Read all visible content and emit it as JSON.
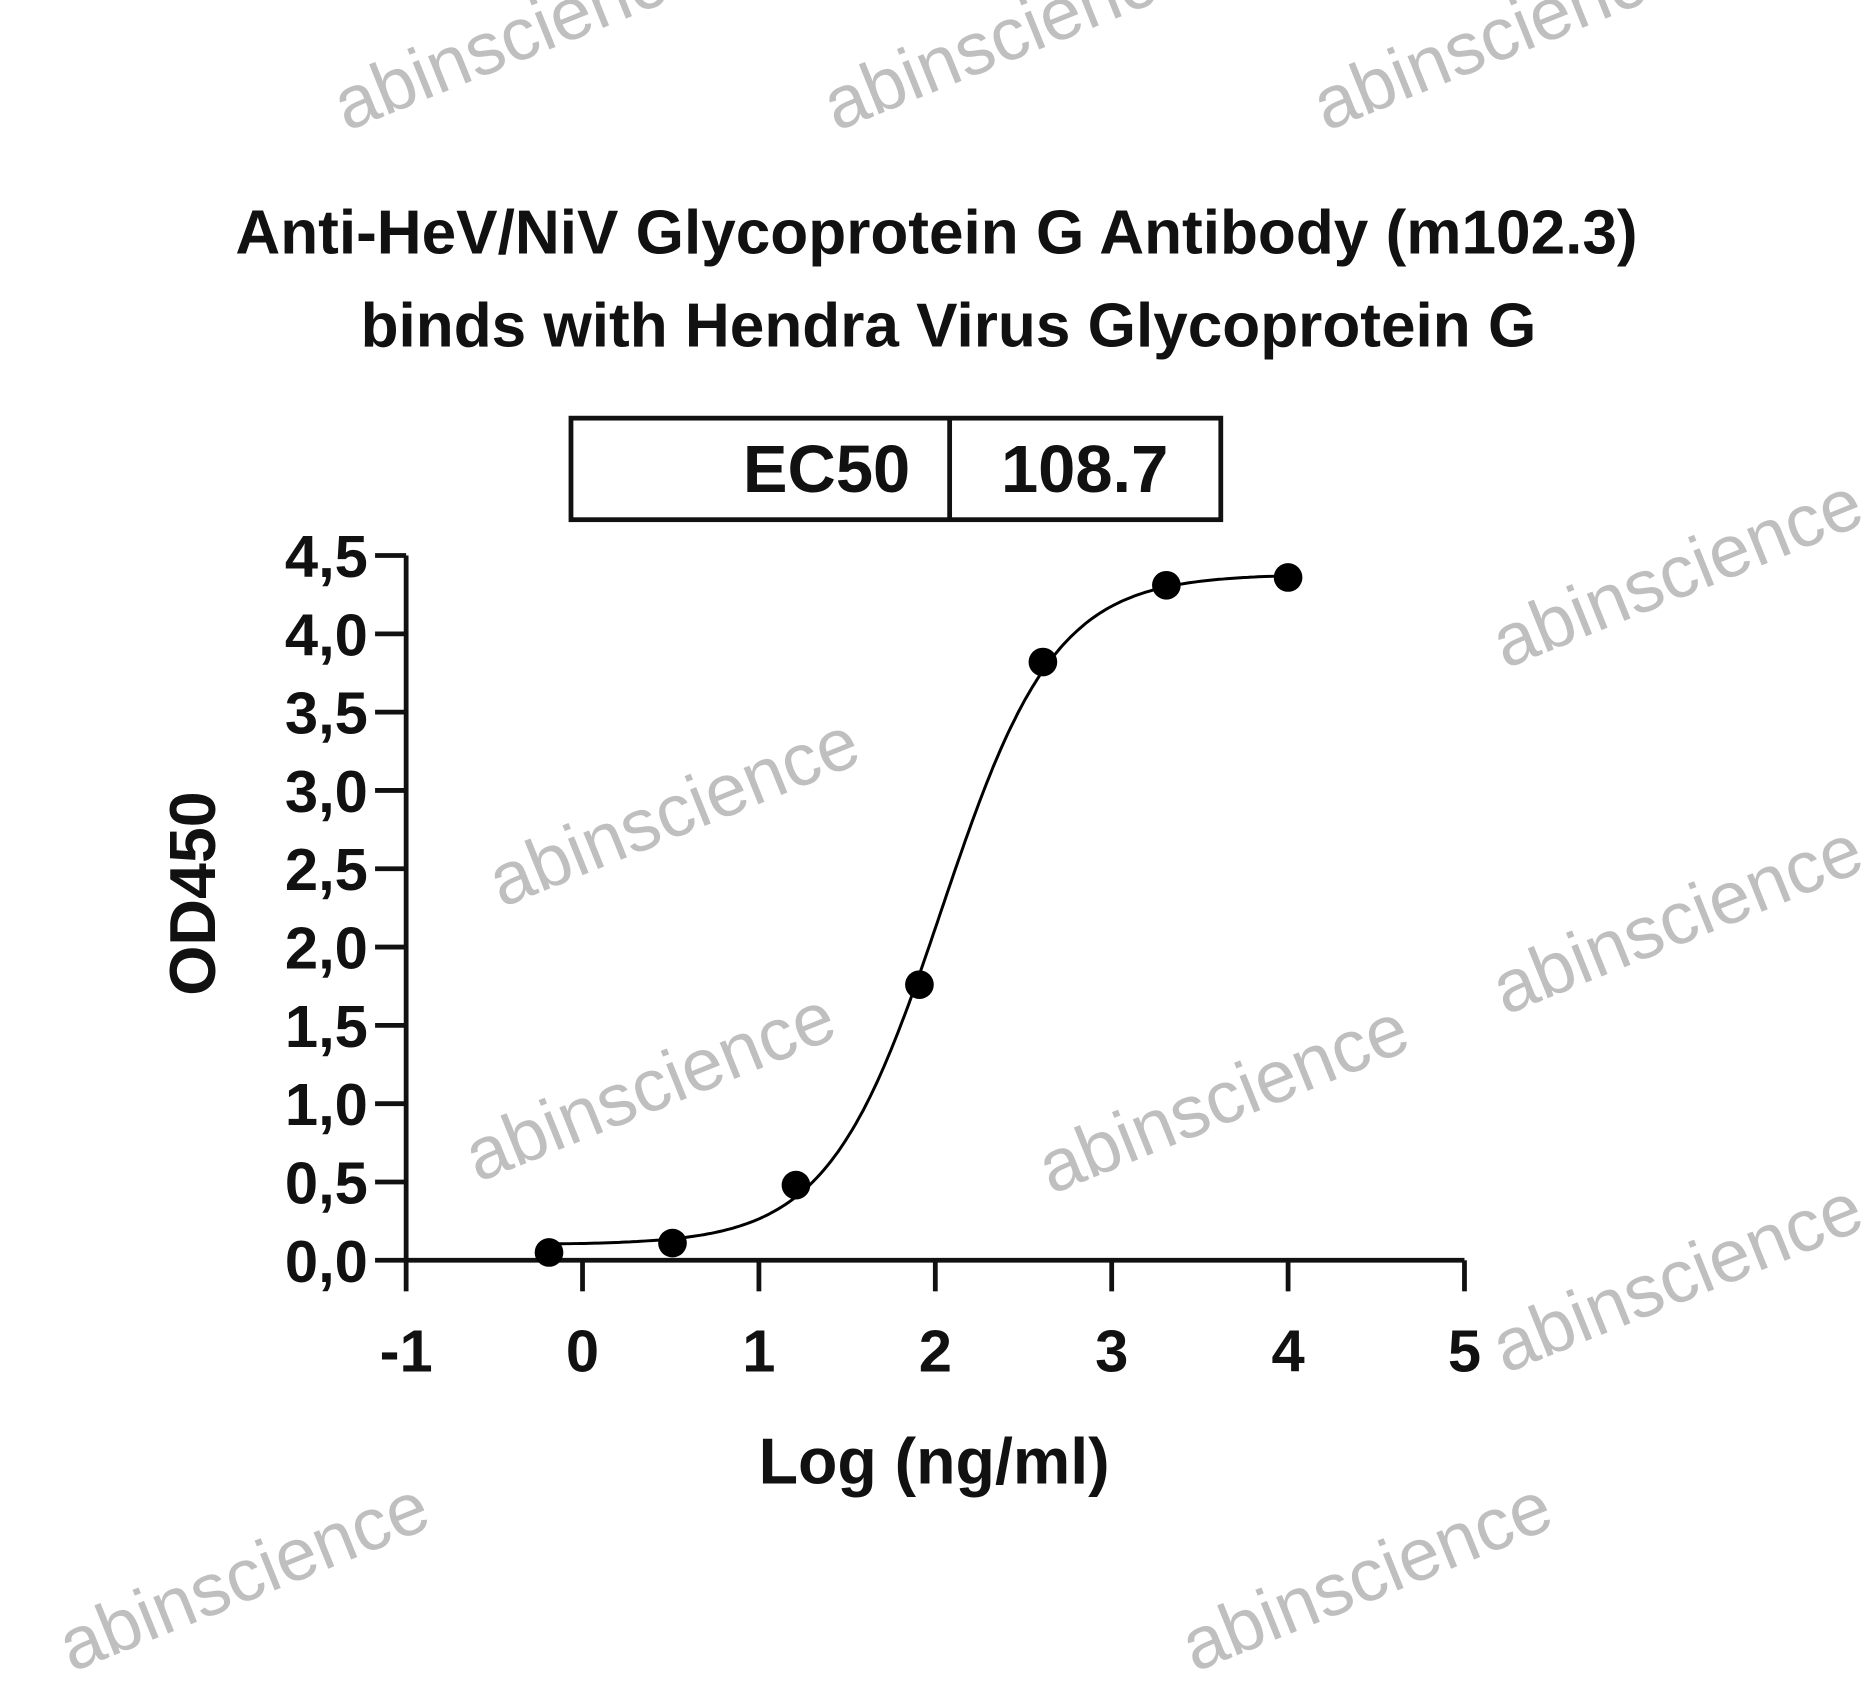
{
  "watermark": "abinscience",
  "chart_data": {
    "type": "scatter",
    "title_lines": [
      "Anti-HeV/NiV Glycoprotein G Antibody (m102.3)",
      "binds with Hendra Virus Glycoprotein G"
    ],
    "xlabel": "Log (ng/ml)",
    "ylabel": "OD450",
    "xlim": [
      -1,
      5
    ],
    "ylim": [
      0,
      4.5
    ],
    "xticks": [
      "-1",
      "0",
      "1",
      "2",
      "3",
      "4",
      "5"
    ],
    "yticks": [
      "0,0",
      "0,5",
      "1,0",
      "1,5",
      "2,0",
      "2,5",
      "3,0",
      "3,5",
      "4,0",
      "4,5"
    ],
    "grid": false,
    "legend_table": {
      "label": "EC50",
      "value": "108.7"
    },
    "points": {
      "x": [
        -0.19,
        0.51,
        1.21,
        1.91,
        2.61,
        3.31,
        4.0
      ],
      "y": [
        0.05,
        0.11,
        0.48,
        1.76,
        3.82,
        4.31,
        4.36
      ]
    },
    "fit": {
      "model": "4PL",
      "bottom": 0.1,
      "top": 4.38,
      "log_ec50": 2.036,
      "hill": 1.35
    },
    "colors": {
      "points": "#000000",
      "curve": "#000000",
      "watermark": "#b4b4b4"
    }
  }
}
